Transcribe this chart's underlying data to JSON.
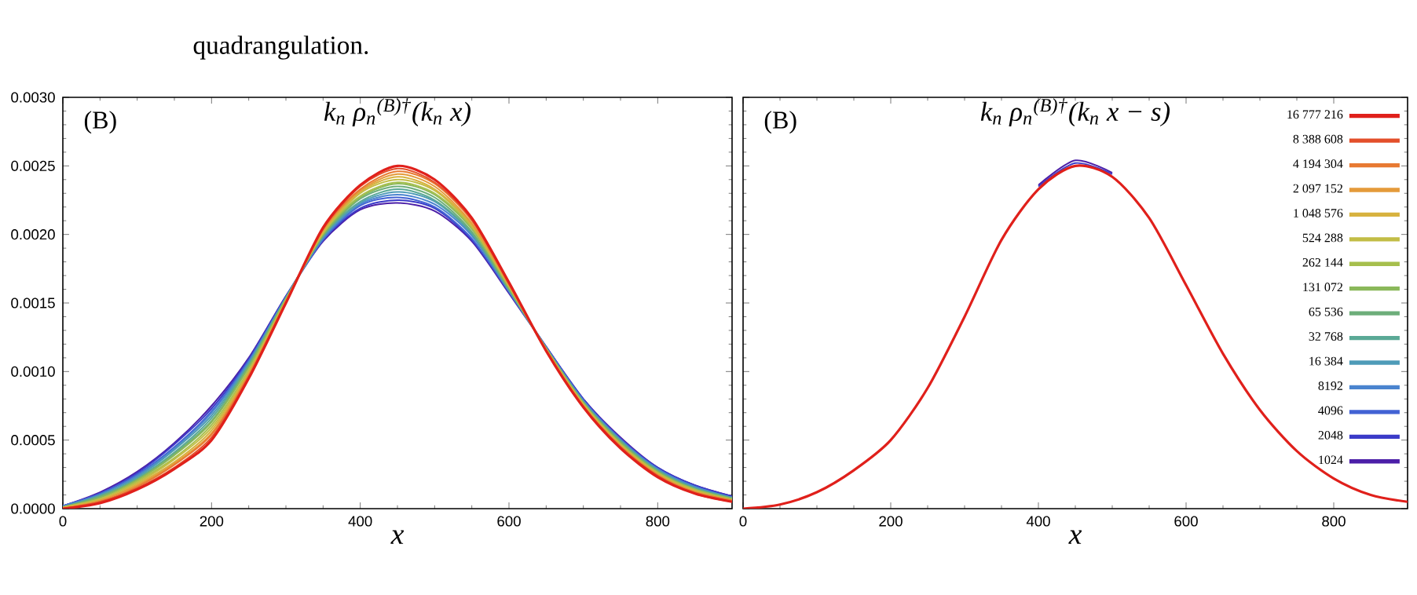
{
  "chart_data": [
    {
      "type": "line",
      "title": "k$_{n}$ ρ$_{n}$$^{(B)†}$(k$_{n}$ x)",
      "xlabel": "x",
      "annotations": [
        "(B)",
        "quadrangulation."
      ],
      "xlim": [
        0,
        900
      ],
      "ylim": [
        0,
        0.003
      ],
      "xticks": [
        0,
        200,
        400,
        600,
        800
      ],
      "yticks": [
        {
          "value": 0,
          "label": "0.0000"
        },
        {
          "value": 0.0005,
          "label": "0.0005"
        },
        {
          "value": 0.001,
          "label": "0.0010"
        },
        {
          "value": 0.0015,
          "label": "0.0015"
        },
        {
          "value": 0.002,
          "label": "0.0020"
        },
        {
          "value": 0.0025,
          "label": "0.0025"
        },
        {
          "value": 0.003,
          "label": "0.0030"
        }
      ],
      "x": [
        0,
        50,
        100,
        150,
        200,
        250,
        300,
        350,
        400,
        450,
        500,
        550,
        600,
        650,
        700,
        750,
        800,
        850,
        900
      ],
      "series": [
        {
          "color": "#e0201b",
          "values": [
            0,
            4e-05,
            0.00014,
            0.00029,
            0.0005,
            0.00095,
            0.0015,
            0.00205,
            0.00236,
            0.0025,
            0.0024,
            0.00212,
            0.00165,
            0.00115,
            0.00074,
            0.00044,
            0.00023,
            0.00011,
            5e-05
          ]
        },
        {
          "color": "#e34f2a",
          "values": [
            0,
            5e-05,
            0.00015,
            0.0003,
            0.00052,
            0.00096,
            0.0015,
            0.00204,
            0.00235,
            0.00248,
            0.00238,
            0.00211,
            0.00164,
            0.00115,
            0.00074,
            0.00045,
            0.00024,
            0.00011,
            5e-05
          ]
        },
        {
          "color": "#e87a32",
          "values": [
            0,
            5e-05,
            0.00016,
            0.00032,
            0.00054,
            0.00097,
            0.00151,
            0.00204,
            0.00233,
            0.00246,
            0.00237,
            0.0021,
            0.00164,
            0.00115,
            0.00075,
            0.00045,
            0.00024,
            0.00012,
            6e-05
          ]
        },
        {
          "color": "#e49a3a",
          "values": [
            0,
            6e-05,
            0.00017,
            0.00033,
            0.00055,
            0.00098,
            0.00151,
            0.00203,
            0.00232,
            0.00244,
            0.00235,
            0.00208,
            0.00163,
            0.00116,
            0.00075,
            0.00046,
            0.00025,
            0.00012,
            6e-05
          ]
        },
        {
          "color": "#d7b23f",
          "values": [
            1e-05,
            6e-05,
            0.00018,
            0.00034,
            0.00057,
            0.00099,
            0.00151,
            0.00202,
            0.00231,
            0.00242,
            0.00233,
            0.00207,
            0.00163,
            0.00116,
            0.00076,
            0.00046,
            0.00025,
            0.00013,
            6e-05
          ]
        },
        {
          "color": "#c2bd45",
          "values": [
            1e-05,
            7e-05,
            0.00019,
            0.00036,
            0.00059,
            0.001,
            0.00152,
            0.00201,
            0.0023,
            0.0024,
            0.00232,
            0.00206,
            0.00162,
            0.00116,
            0.00076,
            0.00047,
            0.00026,
            0.00013,
            6e-05
          ]
        },
        {
          "color": "#a6bf4d",
          "values": [
            1e-05,
            7e-05,
            0.0002,
            0.00037,
            0.00061,
            0.00101,
            0.00152,
            0.00201,
            0.00228,
            0.00238,
            0.0023,
            0.00205,
            0.00162,
            0.00116,
            0.00077,
            0.00047,
            0.00026,
            0.00014,
            7e-05
          ]
        },
        {
          "color": "#8ab85a",
          "values": [
            1e-05,
            8e-05,
            0.00021,
            0.00039,
            0.00063,
            0.00103,
            0.00153,
            0.002,
            0.00227,
            0.00237,
            0.00229,
            0.00204,
            0.00161,
            0.00117,
            0.00077,
            0.00048,
            0.00027,
            0.00014,
            7e-05
          ]
        },
        {
          "color": "#6dae7a",
          "values": [
            1e-05,
            9e-05,
            0.00021,
            0.0004,
            0.00064,
            0.00104,
            0.00153,
            0.00199,
            0.00226,
            0.00235,
            0.00227,
            0.00202,
            0.0016,
            0.00117,
            0.00077,
            0.00049,
            0.00027,
            0.00014,
            7e-05
          ]
        },
        {
          "color": "#5aa996",
          "values": [
            1e-05,
            9e-05,
            0.00022,
            0.00041,
            0.00066,
            0.00105,
            0.00153,
            0.00199,
            0.00224,
            0.00233,
            0.00225,
            0.00201,
            0.0016,
            0.00117,
            0.00078,
            0.00049,
            0.00028,
            0.00015,
            8e-05
          ]
        },
        {
          "color": "#4e9bb8",
          "values": [
            1e-05,
            0.0001,
            0.00023,
            0.00043,
            0.00068,
            0.00106,
            0.00154,
            0.00198,
            0.00223,
            0.00231,
            0.00224,
            0.002,
            0.00159,
            0.00117,
            0.00078,
            0.0005,
            0.00028,
            0.00015,
            8e-05
          ]
        },
        {
          "color": "#4a84cf",
          "values": [
            2e-05,
            0.0001,
            0.00024,
            0.00044,
            0.0007,
            0.00107,
            0.00154,
            0.00197,
            0.00222,
            0.00229,
            0.00222,
            0.00199,
            0.00159,
            0.00117,
            0.00079,
            0.0005,
            0.00029,
            0.00016,
            8e-05
          ]
        },
        {
          "color": "#4262d4",
          "values": [
            2e-05,
            0.00011,
            0.00025,
            0.00045,
            0.00071,
            0.00108,
            0.00154,
            0.00196,
            0.00221,
            0.00227,
            0.0022,
            0.00197,
            0.00158,
            0.00118,
            0.00079,
            0.00051,
            0.00029,
            0.00016,
            8e-05
          ]
        },
        {
          "color": "#3b3bc8",
          "values": [
            2e-05,
            0.00011,
            0.00026,
            0.00047,
            0.00073,
            0.00109,
            0.00155,
            0.00196,
            0.00219,
            0.00225,
            0.00219,
            0.00196,
            0.00158,
            0.00118,
            0.0008,
            0.00051,
            0.0003,
            0.00017,
            9e-05
          ]
        },
        {
          "color": "#4c1fa8",
          "values": [
            2e-05,
            0.00012,
            0.00027,
            0.00048,
            0.00075,
            0.0011,
            0.00155,
            0.00195,
            0.00218,
            0.00223,
            0.00217,
            0.00195,
            0.00157,
            0.00118,
            0.0008,
            0.00052,
            0.0003,
            0.00017,
            9e-05
          ]
        }
      ]
    },
    {
      "type": "line",
      "title": "k$_{n}$ ρ$_{n}$$^{(B)†}$(k$_{n}$ x − s)",
      "xlabel": "x",
      "annotations": [
        "(B)"
      ],
      "legend": "top right",
      "tick_labels": "x",
      "xlim": [
        0,
        900
      ],
      "ylim": [
        0,
        0.003
      ],
      "xticks": [
        0,
        200,
        400,
        600,
        800
      ],
      "yticks": [
        0,
        0.0005,
        0.001,
        0.0015,
        0.002,
        0.0025,
        0.003
      ],
      "x": [
        0,
        50,
        100,
        150,
        200,
        250,
        300,
        350,
        400,
        450,
        500,
        550,
        600,
        650,
        700,
        750,
        800,
        850,
        900
      ],
      "series": [
        {
          "name": "16 777 216",
          "color": "#e0201b",
          "values": [
            0,
            3e-05,
            0.00012,
            0.00028,
            0.0005,
            0.00088,
            0.0014,
            0.00196,
            0.00233,
            0.0025,
            0.00242,
            0.00212,
            0.00163,
            0.00113,
            0.00072,
            0.00042,
            0.00022,
            0.0001,
            5e-05
          ]
        },
        {
          "name": "8 388 608",
          "color": "#e34f2a",
          "values": [
            null,
            null,
            null,
            null,
            null,
            null,
            null,
            null,
            null,
            null,
            null,
            null,
            null,
            null,
            null,
            null,
            null,
            null,
            null
          ]
        },
        {
          "name": "4 194 304",
          "color": "#e87a32",
          "values": [
            null,
            null,
            null,
            null,
            null,
            null,
            null,
            null,
            null,
            null,
            null,
            null,
            null,
            null,
            null,
            null,
            null,
            null,
            null
          ]
        },
        {
          "name": "2 097 152",
          "color": "#e49a3a",
          "values": [
            null,
            null,
            null,
            null,
            null,
            null,
            null,
            null,
            null,
            null,
            null,
            null,
            null,
            null,
            null,
            null,
            null,
            null,
            null
          ]
        },
        {
          "name": "1 048 576",
          "color": "#d7b23f",
          "values": [
            null,
            null,
            null,
            null,
            null,
            null,
            null,
            null,
            null,
            null,
            null,
            null,
            null,
            null,
            null,
            null,
            null,
            null,
            null
          ]
        },
        {
          "name": "524 288",
          "color": "#c2bd45",
          "values": [
            null,
            null,
            null,
            null,
            null,
            null,
            null,
            null,
            null,
            null,
            null,
            null,
            null,
            null,
            null,
            null,
            null,
            null,
            null
          ]
        },
        {
          "name": "262 144",
          "color": "#a6bf4d",
          "values": [
            null,
            null,
            null,
            null,
            null,
            null,
            null,
            null,
            null,
            null,
            null,
            null,
            null,
            null,
            null,
            null,
            null,
            null,
            null
          ]
        },
        {
          "name": "131 072",
          "color": "#8ab85a",
          "values": [
            null,
            null,
            null,
            null,
            null,
            null,
            null,
            null,
            null,
            null,
            null,
            null,
            null,
            null,
            null,
            null,
            null,
            null,
            null
          ]
        },
        {
          "name": "65 536",
          "color": "#6dae7a",
          "values": [
            null,
            null,
            null,
            null,
            null,
            null,
            null,
            null,
            null,
            null,
            null,
            null,
            null,
            null,
            null,
            null,
            null,
            null,
            null
          ]
        },
        {
          "name": "32 768",
          "color": "#5aa996",
          "values": [
            null,
            null,
            null,
            null,
            null,
            null,
            null,
            null,
            null,
            null,
            null,
            null,
            null,
            null,
            null,
            null,
            null,
            null,
            null
          ]
        },
        {
          "name": "16 384",
          "color": "#4e9bb8",
          "values": [
            null,
            null,
            null,
            null,
            null,
            null,
            null,
            null,
            null,
            null,
            null,
            null,
            null,
            null,
            null,
            null,
            null,
            null,
            null
          ]
        },
        {
          "name": "8192",
          "color": "#4a84cf",
          "values": [
            null,
            null,
            null,
            null,
            null,
            null,
            null,
            null,
            null,
            null,
            null,
            null,
            null,
            null,
            null,
            null,
            null,
            null,
            null
          ]
        },
        {
          "name": "4096",
          "color": "#4262d4",
          "values": [
            null,
            null,
            null,
            null,
            null,
            null,
            null,
            null,
            null,
            null,
            null,
            null,
            null,
            null,
            null,
            null,
            null,
            null,
            null
          ]
        },
        {
          "name": "2048",
          "color": "#3b3bc8",
          "values": [
            null,
            null,
            null,
            null,
            null,
            null,
            null,
            null,
            0.00235,
            0.00252,
            0.00244,
            null,
            null,
            null,
            null,
            null,
            null,
            null,
            null
          ]
        },
        {
          "name": "1024",
          "color": "#4c1fa8",
          "values": [
            null,
            null,
            null,
            null,
            null,
            null,
            null,
            null,
            0.00236,
            0.00254,
            0.00245,
            null,
            null,
            null,
            null,
            null,
            null,
            null,
            null
          ]
        }
      ]
    }
  ]
}
